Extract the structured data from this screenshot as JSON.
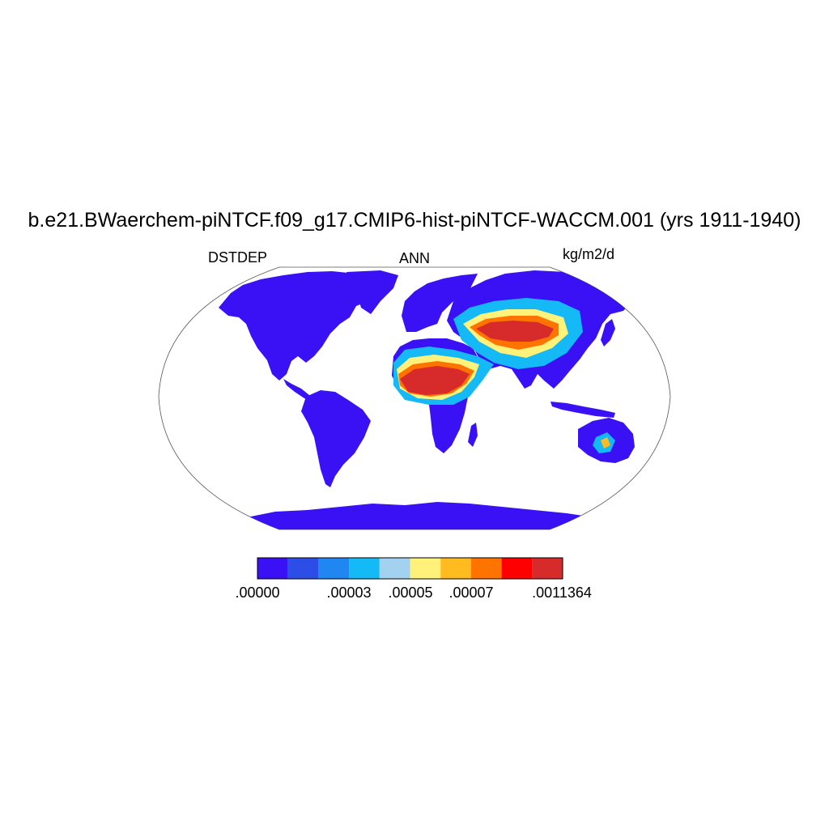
{
  "title": "b.e21.BWaerchem-piNTCF.f09_g17.CMIP6-hist-piNTCF-WACCM.001 (yrs 1911-1940)",
  "left_label": "DSTDEP",
  "center_label": "ANN",
  "right_label": "kg/m2/d",
  "colorbar": {
    "colors": [
      "#3a10f5",
      "#2c4ee6",
      "#1f86f2",
      "#14b9f5",
      "#a3d2f0",
      "#fff27a",
      "#ffbb1f",
      "#ff7400",
      "#ff0000",
      "#d72a2a"
    ],
    "tick_labels": [
      ".00000",
      ".00003",
      ".00005",
      ".00007",
      ".0011364"
    ],
    "tick_label_positions": [
      0,
      3,
      4,
      5,
      7
    ]
  },
  "map": {
    "projection": "robinson",
    "field": "DSTDEP"
  }
}
